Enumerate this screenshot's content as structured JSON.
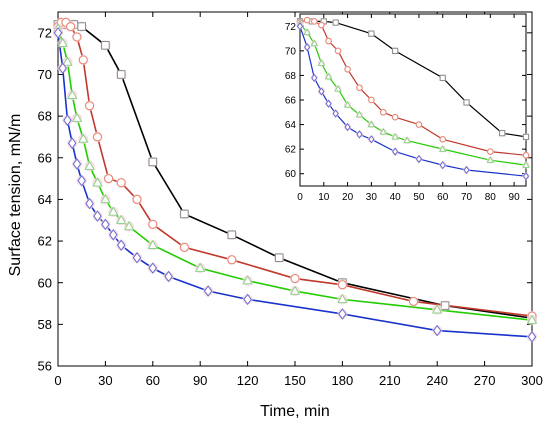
{
  "chart_data": [
    {
      "type": "line",
      "xlabel": "Time, min",
      "ylabel": "Surface tension, mN/m",
      "xlim": [
        0,
        300
      ],
      "ylim": [
        56,
        73
      ],
      "xticks": [
        0,
        30,
        60,
        90,
        120,
        150,
        180,
        210,
        240,
        270,
        300
      ],
      "yticks": [
        56,
        58,
        60,
        62,
        64,
        66,
        68,
        70,
        72
      ],
      "grid": false,
      "series": [
        {
          "color": "#000000",
          "marker": "square",
          "marker_color": "#8a8a8a",
          "halo_color": "#f5d4dc",
          "x": [
            0,
            5,
            10,
            15,
            30,
            40,
            60,
            80,
            110,
            140,
            180,
            245,
            300
          ],
          "y": [
            72.4,
            72.4,
            72.4,
            72.3,
            71.4,
            70.0,
            65.8,
            63.3,
            62.3,
            61.2,
            60.0,
            58.9,
            58.3
          ]
        },
        {
          "color": "#c0392b",
          "marker": "circle",
          "marker_color": "#e8826e",
          "halo_color": "#f5d4dc",
          "x": [
            0,
            2,
            5,
            8,
            12,
            16,
            20,
            25,
            32,
            40,
            50,
            60,
            80,
            110,
            150,
            180,
            225,
            300
          ],
          "y": [
            72.3,
            72.5,
            72.5,
            72.3,
            71.8,
            70.7,
            68.5,
            67.0,
            65.0,
            64.8,
            64.0,
            62.8,
            61.7,
            61.1,
            60.2,
            59.9,
            59.1,
            58.4
          ]
        },
        {
          "color": "#22cc00",
          "marker": "triangle",
          "marker_color": "#8fd08a",
          "halo_color": "#f5d4dc",
          "x": [
            0,
            3,
            6,
            9,
            12,
            16,
            20,
            25,
            30,
            35,
            40,
            45,
            60,
            90,
            120,
            150,
            180,
            240,
            300
          ],
          "y": [
            72.2,
            71.5,
            70.6,
            69.0,
            67.9,
            66.9,
            65.6,
            64.8,
            64.0,
            63.4,
            63.0,
            62.7,
            61.8,
            60.7,
            60.1,
            59.6,
            59.2,
            58.7,
            58.2
          ]
        },
        {
          "color": "#1a33cc",
          "marker": "diamond",
          "marker_color": "#6b6bd0",
          "halo_color": "#f5d4dc",
          "x": [
            0,
            3,
            6,
            9,
            12,
            15,
            20,
            25,
            30,
            35,
            40,
            50,
            60,
            70,
            95,
            120,
            180,
            240,
            300
          ],
          "y": [
            72.0,
            70.3,
            67.8,
            66.7,
            65.7,
            64.9,
            63.8,
            63.2,
            62.8,
            62.3,
            61.8,
            61.2,
            60.7,
            60.3,
            59.6,
            59.2,
            58.5,
            57.7,
            57.4
          ]
        }
      ]
    },
    {
      "type": "line",
      "xlim": [
        0,
        95
      ],
      "ylim": [
        59,
        73
      ],
      "xticks": [
        0,
        10,
        20,
        30,
        40,
        50,
        60,
        70,
        80,
        90
      ],
      "yticks": [
        60,
        62,
        64,
        66,
        68,
        70,
        72
      ],
      "grid": false,
      "series": [
        {
          "color": "#000000",
          "marker": "square",
          "marker_color": "#8a8a8a",
          "halo_color": "#f5d4dc",
          "x": [
            0,
            5,
            10,
            15,
            30,
            40,
            60,
            70,
            85,
            95
          ],
          "y": [
            72.4,
            72.4,
            72.4,
            72.3,
            71.4,
            70.0,
            67.8,
            65.8,
            63.3,
            63.0
          ]
        },
        {
          "color": "#c0392b",
          "marker": "circle",
          "marker_color": "#e8826e",
          "halo_color": "#f5d4dc",
          "x": [
            0,
            3,
            6,
            9,
            12,
            16,
            20,
            25,
            30,
            35,
            40,
            50,
            60,
            80,
            95
          ],
          "y": [
            72.3,
            72.5,
            72.4,
            72.1,
            70.8,
            70.0,
            68.5,
            67.0,
            66.0,
            65.0,
            64.6,
            64.0,
            62.8,
            61.8,
            61.5
          ]
        },
        {
          "color": "#22cc00",
          "marker": "triangle",
          "marker_color": "#8fd08a",
          "halo_color": "#f5d4dc",
          "x": [
            0,
            3,
            6,
            9,
            12,
            16,
            20,
            25,
            30,
            35,
            40,
            45,
            60,
            80,
            95
          ],
          "y": [
            72.2,
            71.5,
            70.6,
            69.0,
            67.9,
            66.9,
            65.6,
            64.8,
            64.0,
            63.4,
            63.0,
            62.7,
            62.0,
            61.1,
            60.7
          ]
        },
        {
          "color": "#1a33cc",
          "marker": "diamond",
          "marker_color": "#6b6bd0",
          "halo_color": "#f5d4dc",
          "x": [
            0,
            3,
            6,
            9,
            12,
            15,
            20,
            25,
            30,
            40,
            50,
            60,
            70,
            95
          ],
          "y": [
            72.0,
            70.3,
            67.8,
            66.7,
            65.7,
            64.9,
            63.8,
            63.2,
            62.8,
            61.8,
            61.2,
            60.7,
            60.3,
            59.8
          ]
        }
      ]
    }
  ]
}
